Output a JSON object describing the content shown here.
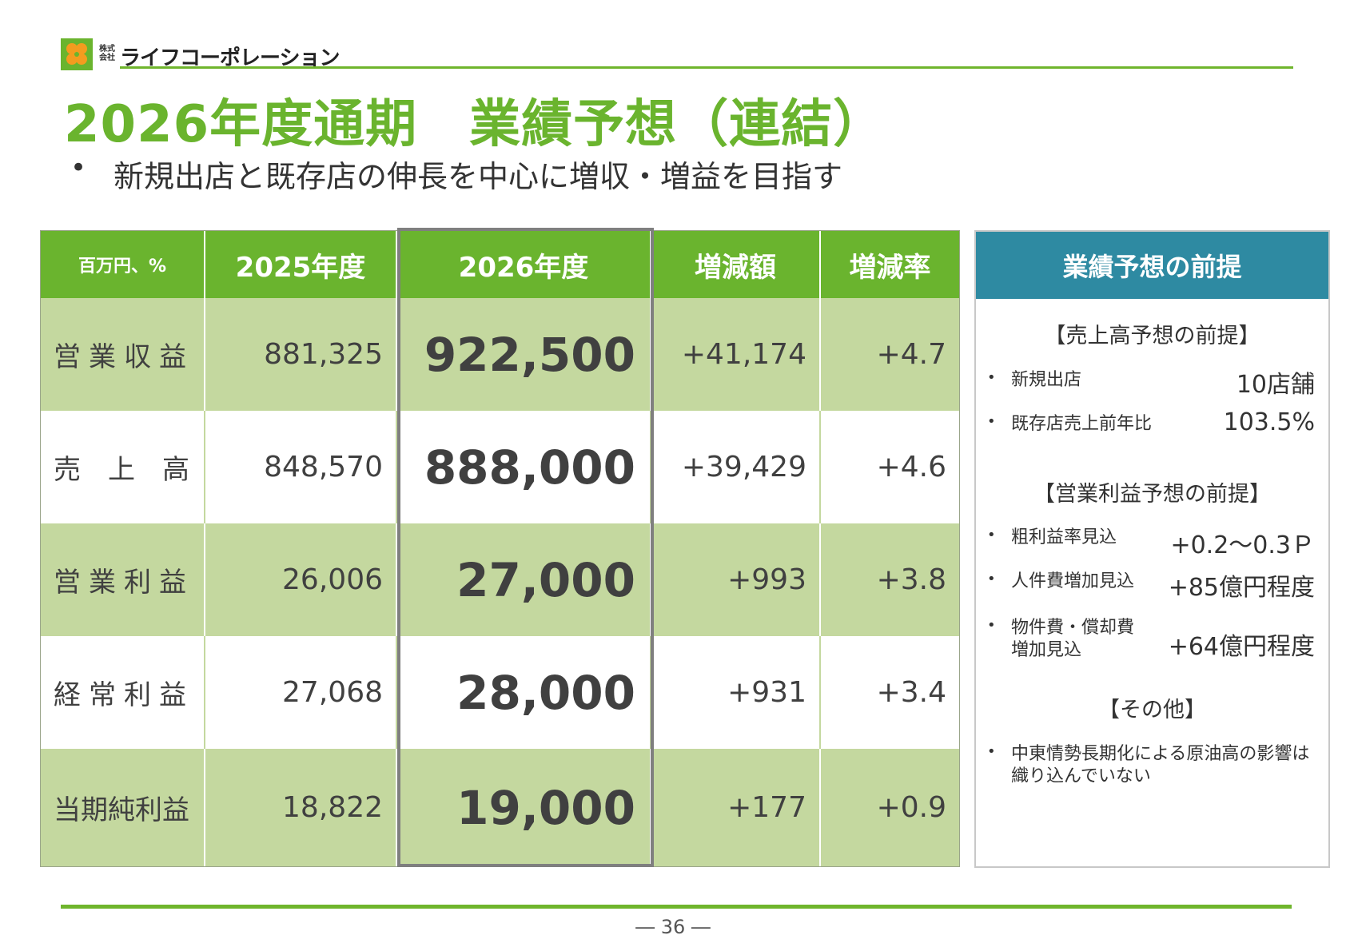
{
  "header": {
    "corp_type": "株式会社",
    "company_name": "ライフコーポレーション",
    "title": "2026年度通期　業績予想（連結）",
    "subtitle_bullet": "•",
    "subtitle": "新規出店と既存店の伸長を中心に増収・増益を目指す"
  },
  "table": {
    "unit_label": "百万円、%",
    "columns": [
      "2025年度",
      "2026年度",
      "増減額",
      "増減率"
    ],
    "rows": [
      {
        "label": "営業収益",
        "prev": "881,325",
        "curr": "922,500",
        "diff": "+41,174",
        "rate": "+4.7"
      },
      {
        "label": "売　上　高",
        "prev": "848,570",
        "curr": "888,000",
        "diff": "+39,429",
        "rate": "+4.6"
      },
      {
        "label": "営業利益",
        "prev": "26,006",
        "curr": "27,000",
        "diff": "+993",
        "rate": "+3.8"
      },
      {
        "label": "経常利益",
        "prev": "27,068",
        "curr": "28,000",
        "diff": "+931",
        "rate": "+3.4"
      },
      {
        "label": "当期純利益",
        "prev": "18,822",
        "curr": "19,000",
        "diff": "+177",
        "rate": "+0.9"
      }
    ]
  },
  "assumptions": {
    "title": "業績予想の前提",
    "sales_title": "【売上高予想の前提】",
    "sales_items": [
      {
        "label": "新規出店",
        "value": "10店舗"
      },
      {
        "label": "既存店売上前年比",
        "value": "103.5%"
      }
    ],
    "profit_title": "【営業利益予想の前提】",
    "profit_items": [
      {
        "label": "粗利益率見込",
        "value": "+0.2～0.3Ｐ"
      },
      {
        "label": "人件費増加見込",
        "value": "+85億円程度"
      },
      {
        "label_line1": "物件費・償却費",
        "label_line2": "増加見込",
        "value": "+64億円程度"
      }
    ],
    "other_title": "【その他】",
    "other_items": [
      {
        "line1": "中東情勢長期化による原油高の影響は",
        "line2": "織り込んでいない"
      }
    ],
    "bullet": "•"
  },
  "footer": {
    "page": "― 36 ―"
  },
  "colors": {
    "brand_green": "#6ab42e",
    "row_green": "#c4d89f",
    "panel_blue": "#2e8aa2",
    "highlight_border": "#7f7f7f"
  }
}
